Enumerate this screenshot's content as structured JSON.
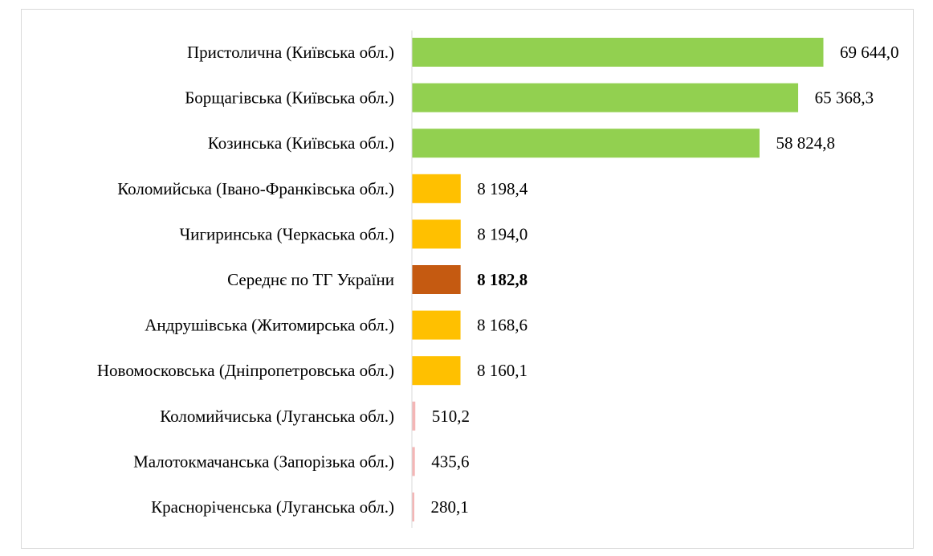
{
  "chart_data": {
    "type": "bar",
    "orientation": "horizontal",
    "categories": [
      "Пристолична (Київська обл.)",
      "Борщагівська (Київська обл.)",
      "Козинська (Київська обл.)",
      "Коломийська (Івано-Франківська обл.)",
      "Чигиринська (Черкаська обл.)",
      "Середнє по ТГ України",
      "Андрушівська (Житомирська обл.)",
      "Новомосковська (Дніпропетровська обл.)",
      "Коломийчиська (Луганська обл.)",
      "Малотокмачанська (Запорізька обл.)",
      "Краснорічeнська (Луганська обл.)"
    ],
    "values": [
      69644.0,
      65368.3,
      58824.8,
      8198.4,
      8194.0,
      8182.8,
      8168.6,
      8160.1,
      510.2,
      435.6,
      280.1
    ],
    "value_labels": [
      "69 644,0",
      "65 368,3",
      "58 824,8",
      "8 198,4",
      "8 194,0",
      "8 182,8",
      "8 168,6",
      "8 160,1",
      "510,2",
      "435,6",
      "280,1"
    ],
    "bar_colors": [
      "#92d050",
      "#92d050",
      "#92d050",
      "#ffc000",
      "#ffc000",
      "#c55a11",
      "#ffc000",
      "#ffc000",
      "#f4b6b6",
      "#f4b6b6",
      "#f4b6b6"
    ],
    "highlight_index": 5,
    "xlim": [
      0,
      69644.0
    ],
    "grid": false,
    "legend": "none",
    "title": "",
    "xlabel": "",
    "ylabel": ""
  }
}
